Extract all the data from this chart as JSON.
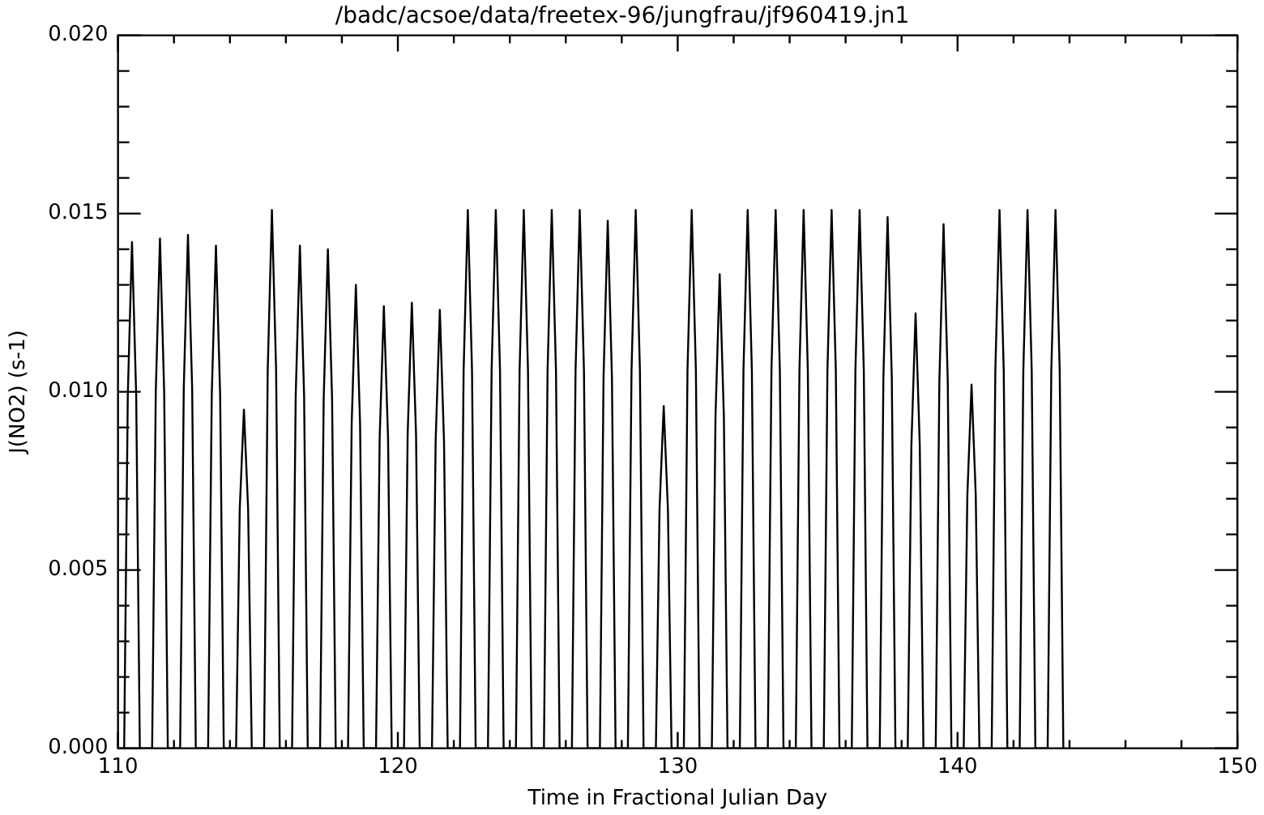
{
  "chart_data": {
    "type": "line",
    "title": "/badc/acsoe/data/freetex-96/jungfrau/jf960419.jn1",
    "xlabel": "Time in Fractional Julian Day",
    "ylabel": "J(NO2) (s-1)",
    "grid": false,
    "legend": false,
    "marker": "none",
    "line_style": "solid",
    "xlim": [
      110,
      150
    ],
    "xticks": [
      110,
      {
        "value": 112,
        "label": null
      },
      {
        "value": 114,
        "label": null
      },
      {
        "value": 116,
        "label": null
      },
      {
        "value": 118,
        "label": null
      },
      120,
      {
        "value": 122,
        "label": null
      },
      {
        "value": 124,
        "label": null
      },
      {
        "value": 126,
        "label": null
      },
      {
        "value": 128,
        "label": null
      },
      130,
      {
        "value": 132,
        "label": null
      },
      {
        "value": 134,
        "label": null
      },
      {
        "value": 136,
        "label": null
      },
      {
        "value": 138,
        "label": null
      },
      140,
      {
        "value": 142,
        "label": null
      },
      {
        "value": 144,
        "label": null
      },
      {
        "value": 146,
        "label": null
      },
      {
        "value": 148,
        "label": null
      },
      150
    ],
    "ylim": [
      0,
      0.02
    ],
    "yticks": [
      {
        "value": 0,
        "label": "0.000"
      },
      {
        "value": 0.001,
        "label": null
      },
      {
        "value": 0.002,
        "label": null
      },
      {
        "value": 0.003,
        "label": null
      },
      {
        "value": 0.004,
        "label": null
      },
      {
        "value": 0.005,
        "label": "0.005"
      },
      {
        "value": 0.006,
        "label": null
      },
      {
        "value": 0.007,
        "label": null
      },
      {
        "value": 0.008,
        "label": null
      },
      {
        "value": 0.009,
        "label": null
      },
      {
        "value": 0.01,
        "label": "0.010"
      },
      {
        "value": 0.011,
        "label": null
      },
      {
        "value": 0.012,
        "label": null
      },
      {
        "value": 0.013,
        "label": null
      },
      {
        "value": 0.014,
        "label": null
      },
      {
        "value": 0.015,
        "label": "0.015"
      },
      {
        "value": 0.016,
        "label": null
      },
      {
        "value": 0.017,
        "label": null
      },
      {
        "value": 0.018,
        "label": null
      },
      {
        "value": 0.019,
        "label": null
      },
      {
        "value": 0.02,
        "label": "0.020"
      }
    ],
    "series": [
      {
        "color": "#000000",
        "x": [
          110.22,
          110.35,
          110.5,
          110.65,
          110.78,
          111.22,
          111.35,
          111.5,
          111.65,
          111.78,
          112.22,
          112.35,
          112.5,
          112.65,
          112.78,
          113.22,
          113.35,
          113.5,
          113.65,
          113.78,
          114.22,
          114.35,
          114.5,
          114.65,
          114.78,
          115.22,
          115.35,
          115.5,
          115.65,
          115.78,
          116.22,
          116.35,
          116.5,
          116.65,
          116.78,
          117.22,
          117.35,
          117.5,
          117.65,
          117.78,
          118.22,
          118.35,
          118.5,
          118.65,
          118.78,
          119.22,
          119.35,
          119.5,
          119.65,
          119.78,
          120.22,
          120.35,
          120.5,
          120.65,
          120.78,
          121.22,
          121.35,
          121.5,
          121.65,
          121.78,
          122.22,
          122.35,
          122.5,
          122.65,
          122.78,
          123.22,
          123.35,
          123.5,
          123.65,
          123.78,
          124.22,
          124.35,
          124.5,
          124.65,
          124.78,
          125.22,
          125.35,
          125.5,
          125.65,
          125.78,
          126.22,
          126.35,
          126.5,
          126.65,
          126.78,
          127.22,
          127.35,
          127.5,
          127.65,
          127.78,
          128.22,
          128.35,
          128.5,
          128.65,
          128.78,
          129.22,
          129.35,
          129.5,
          129.65,
          129.78,
          130.22,
          130.35,
          130.5,
          130.65,
          130.78,
          131.22,
          131.35,
          131.5,
          131.65,
          131.78,
          132.22,
          132.35,
          132.5,
          132.65,
          132.78,
          133.22,
          133.35,
          133.5,
          133.65,
          133.78,
          134.22,
          134.35,
          134.5,
          134.65,
          134.78,
          135.22,
          135.35,
          135.5,
          135.65,
          135.78,
          136.22,
          136.35,
          136.5,
          136.65,
          136.78,
          137.22,
          137.35,
          137.5,
          137.65,
          137.78,
          138.22,
          138.35,
          138.5,
          138.65,
          138.78,
          139.22,
          139.35,
          139.5,
          139.65,
          139.78,
          140.22,
          140.35,
          140.5,
          140.65,
          140.78,
          141.22,
          141.35,
          141.5,
          141.65,
          141.78,
          142.22,
          142.35,
          142.5,
          142.65,
          142.78,
          143.22,
          143.35,
          143.5,
          143.65,
          143.78
        ],
        "values": [
          0,
          0.0099,
          0.0142,
          0.0099,
          0,
          0,
          0.01,
          0.0143,
          0.01,
          0,
          0,
          0.0101,
          0.0144,
          0.0101,
          0,
          0,
          0.0099,
          0.0141,
          0.0099,
          0,
          0,
          0.0067,
          0.0095,
          0.0067,
          0,
          0,
          0.0106,
          0.0151,
          0.0106,
          0,
          0,
          0.0099,
          0.0141,
          0.0099,
          0,
          0,
          0.0098,
          0.014,
          0.0098,
          0,
          0,
          0.0091,
          0.013,
          0.0091,
          0,
          0,
          0.0087,
          0.0124,
          0.0087,
          0,
          0,
          0.0088,
          0.0125,
          0.0088,
          0,
          0,
          0.0086,
          0.0123,
          0.0086,
          0,
          0,
          0.0106,
          0.0151,
          0.0106,
          0,
          0,
          0.0106,
          0.0151,
          0.0106,
          0,
          0,
          0.0106,
          0.0151,
          0.0106,
          0,
          0,
          0.0106,
          0.0151,
          0.0106,
          0,
          0,
          0.0106,
          0.0151,
          0.0106,
          0,
          0,
          0.0104,
          0.0148,
          0.0104,
          0,
          0,
          0.0106,
          0.0151,
          0.0106,
          0,
          0,
          0.0067,
          0.0096,
          0.0067,
          0,
          0,
          0.0106,
          0.0151,
          0.0106,
          0,
          0,
          0.0093,
          0.0133,
          0.0093,
          0,
          0,
          0.0106,
          0.0151,
          0.0106,
          0,
          0,
          0.0106,
          0.0151,
          0.0106,
          0,
          0,
          0.0106,
          0.0151,
          0.0106,
          0,
          0,
          0.0106,
          0.0151,
          0.0106,
          0,
          0,
          0.0106,
          0.0151,
          0.0106,
          0,
          0,
          0.0104,
          0.0149,
          0.0104,
          0,
          0,
          0.0085,
          0.0122,
          0.0085,
          0,
          0,
          0.0103,
          0.0147,
          0.0103,
          0,
          0,
          0.0071,
          0.0102,
          0.0071,
          0,
          0,
          0.0106,
          0.0151,
          0.0106,
          0,
          0,
          0.0106,
          0.0151,
          0.0106,
          0,
          0,
          0.0106,
          0.0151,
          0.0106,
          0
        ]
      }
    ]
  }
}
